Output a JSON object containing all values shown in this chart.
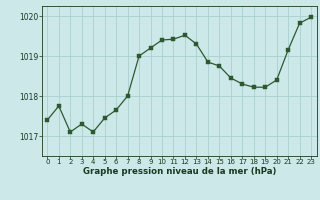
{
  "hours": [
    0,
    1,
    2,
    3,
    4,
    5,
    6,
    7,
    8,
    9,
    10,
    11,
    12,
    13,
    14,
    15,
    16,
    17,
    18,
    19,
    20,
    21,
    22,
    23
  ],
  "pressure": [
    1017.4,
    1017.75,
    1017.1,
    1017.3,
    1017.1,
    1017.45,
    1017.65,
    1018.0,
    1019.0,
    1019.2,
    1019.4,
    1019.42,
    1019.52,
    1019.3,
    1018.85,
    1018.75,
    1018.45,
    1018.3,
    1018.22,
    1018.22,
    1018.4,
    1019.15,
    1019.82,
    1019.97
  ],
  "line_color": "#2d5a2d",
  "marker_color": "#2d5a2d",
  "bg_color": "#cce8e8",
  "grid_color": "#aacfcf",
  "xlabel": "Graphe pression niveau de la mer (hPa)",
  "xlabel_color": "#1a3a1a",
  "tick_color": "#1a3a1a",
  "ylim_min": 1016.5,
  "ylim_max": 1020.25,
  "yticks": [
    1017,
    1018,
    1019,
    1020
  ],
  "xticks": [
    0,
    1,
    2,
    3,
    4,
    5,
    6,
    7,
    8,
    9,
    10,
    11,
    12,
    13,
    14,
    15,
    16,
    17,
    18,
    19,
    20,
    21,
    22,
    23
  ]
}
